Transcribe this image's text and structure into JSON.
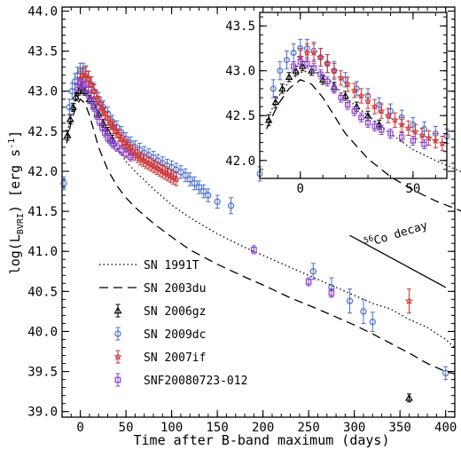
{
  "chart_data": {
    "type": "scatter",
    "xlabel": "Time after B-band maximum (days)",
    "ylabel": "log(L_BVRI) [erg s^-1]",
    "xlim": [
      -20,
      410
    ],
    "ylim": [
      38.93,
      44.05
    ],
    "xticks": [
      "0",
      "50",
      "100",
      "150",
      "200",
      "250",
      "300",
      "350",
      "400"
    ],
    "yticks": [
      "39.0",
      "39.5",
      "40.0",
      "40.5",
      "41.0",
      "41.5",
      "42.0",
      "42.5",
      "43.0",
      "43.5",
      "44.0"
    ],
    "legend_position": "bottom-left",
    "legend": [
      {
        "label": "SN 1991T",
        "style": "dotted"
      },
      {
        "label": "SN 2003du",
        "style": "dashed"
      },
      {
        "label": "SN 2006gz",
        "style": "triangle",
        "color": "#000000"
      },
      {
        "label": "SN 2009dc",
        "style": "circle",
        "color": "#4a6fd0"
      },
      {
        "label": "SN 2007if",
        "style": "star",
        "color": "#d23030"
      },
      {
        "label": "SNF20080723-012",
        "style": "square",
        "color": "#8a3fd0"
      }
    ],
    "annotation": {
      "sup": "56",
      "text": "Co decay",
      "line_x": [
        295,
        400
      ],
      "line_y": [
        41.2,
        40.55
      ]
    },
    "series": [
      {
        "name": "SN 1991T",
        "style": "dotted",
        "color": "#000000",
        "x": [
          -15,
          -10,
          -5,
          0,
          5,
          10,
          15,
          20,
          30,
          40,
          50,
          60,
          80,
          100,
          120,
          150,
          180,
          200,
          230,
          260,
          280,
          300,
          320,
          340,
          360,
          380,
          400,
          410
        ],
        "y": [
          42.45,
          42.7,
          42.88,
          42.98,
          43.0,
          42.95,
          42.85,
          42.7,
          42.5,
          42.3,
          42.12,
          42.0,
          41.78,
          41.58,
          41.42,
          41.22,
          41.05,
          40.95,
          40.8,
          40.65,
          40.55,
          40.45,
          40.35,
          40.28,
          40.15,
          40.05,
          39.9,
          39.8
        ]
      },
      {
        "name": "SN 2003du",
        "style": "dashed",
        "color": "#000000",
        "x": [
          -15,
          -10,
          -5,
          0,
          5,
          10,
          15,
          20,
          30,
          40,
          50,
          60,
          80,
          100,
          120,
          150,
          180,
          200,
          230,
          260,
          280,
          300,
          320,
          340,
          360,
          380,
          400,
          410
        ],
        "y": [
          42.35,
          42.62,
          42.8,
          42.9,
          42.85,
          42.7,
          42.5,
          42.3,
          42.02,
          41.82,
          41.67,
          41.55,
          41.35,
          41.18,
          41.02,
          40.84,
          40.68,
          40.58,
          40.42,
          40.28,
          40.18,
          40.08,
          39.97,
          39.85,
          39.73,
          39.6,
          39.5,
          39.47
        ]
      },
      {
        "name": "SN 2006gz",
        "style": "triangle",
        "color": "#000000",
        "x": [
          -14,
          -11,
          -8,
          -5,
          -2,
          1,
          5,
          10,
          15,
          20,
          25,
          30,
          35,
          360
        ],
        "y": [
          42.45,
          42.65,
          42.8,
          42.93,
          43.0,
          43.05,
          43.0,
          42.9,
          42.82,
          42.72,
          42.6,
          42.5,
          42.4,
          39.17
        ],
        "err": [
          0.06,
          0.06,
          0.05,
          0.05,
          0.05,
          0.05,
          0.05,
          0.05,
          0.05,
          0.05,
          0.05,
          0.05,
          0.05,
          0.05
        ]
      },
      {
        "name": "SN 2009dc",
        "style": "circle",
        "color": "#4a6fd0",
        "x": [
          -18,
          -12,
          -9,
          -6,
          -3,
          0,
          3,
          6,
          9,
          12,
          15,
          20,
          25,
          30,
          35,
          40,
          45,
          50,
          55,
          60,
          65,
          70,
          75,
          80,
          85,
          90,
          95,
          100,
          105,
          110,
          115,
          120,
          125,
          130,
          135,
          140,
          150,
          165,
          255,
          275,
          295,
          310,
          320,
          400
        ],
        "y": [
          41.85,
          42.8,
          43.0,
          43.12,
          43.2,
          43.25,
          43.25,
          43.22,
          43.15,
          43.08,
          43.0,
          42.9,
          42.8,
          42.72,
          42.62,
          42.55,
          42.48,
          42.4,
          42.35,
          42.3,
          42.27,
          42.23,
          42.2,
          42.17,
          42.13,
          42.1,
          42.07,
          42.05,
          42.02,
          41.99,
          41.95,
          41.9,
          41.85,
          41.8,
          41.75,
          41.7,
          41.62,
          41.57,
          40.75,
          40.55,
          40.38,
          40.25,
          40.12,
          39.48
        ],
        "err": [
          0.08,
          0.1,
          0.1,
          0.1,
          0.1,
          0.1,
          0.1,
          0.1,
          0.1,
          0.1,
          0.1,
          0.08,
          0.08,
          0.08,
          0.08,
          0.08,
          0.08,
          0.08,
          0.08,
          0.08,
          0.08,
          0.08,
          0.08,
          0.08,
          0.08,
          0.08,
          0.08,
          0.08,
          0.08,
          0.08,
          0.08,
          0.08,
          0.08,
          0.08,
          0.08,
          0.08,
          0.08,
          0.1,
          0.1,
          0.12,
          0.15,
          0.15,
          0.12,
          0.08
        ]
      },
      {
        "name": "SN 2007if",
        "style": "star",
        "color": "#d23030",
        "x": [
          0,
          3,
          6,
          9,
          12,
          15,
          18,
          21,
          24,
          27,
          30,
          33,
          36,
          39,
          42,
          45,
          48,
          51,
          54,
          57,
          60,
          63,
          66,
          69,
          72,
          75,
          78,
          81,
          84,
          87,
          90,
          93,
          96,
          99,
          102,
          105,
          360
        ],
        "y": [
          43.15,
          43.2,
          43.2,
          43.15,
          43.08,
          43.0,
          42.92,
          42.85,
          42.78,
          42.72,
          42.66,
          42.6,
          42.55,
          42.5,
          42.45,
          42.4,
          42.36,
          42.32,
          42.28,
          42.25,
          42.22,
          42.19,
          42.16,
          42.14,
          42.12,
          42.1,
          42.08,
          42.06,
          42.04,
          42.02,
          42.0,
          41.98,
          41.96,
          41.94,
          41.92,
          41.9,
          40.38
        ],
        "err": [
          0.1,
          0.1,
          0.1,
          0.1,
          0.1,
          0.08,
          0.08,
          0.08,
          0.08,
          0.08,
          0.08,
          0.08,
          0.08,
          0.08,
          0.08,
          0.08,
          0.08,
          0.08,
          0.08,
          0.08,
          0.08,
          0.08,
          0.08,
          0.08,
          0.08,
          0.08,
          0.08,
          0.08,
          0.08,
          0.08,
          0.08,
          0.08,
          0.08,
          0.08,
          0.08,
          0.08,
          0.15
        ]
      },
      {
        "name": "SNF20080723-012",
        "style": "square",
        "color": "#8a3fd0",
        "x": [
          -3,
          0,
          3,
          6,
          9,
          12,
          15,
          18,
          21,
          24,
          27,
          30,
          33,
          36,
          40,
          45,
          50,
          55,
          190,
          250,
          275
        ],
        "y": [
          43.05,
          43.1,
          43.08,
          43.03,
          42.96,
          42.88,
          42.8,
          42.7,
          42.62,
          42.55,
          42.48,
          42.42,
          42.38,
          42.34,
          42.3,
          42.26,
          42.22,
          42.18,
          41.02,
          40.62,
          40.48
        ],
        "err": [
          0.05,
          0.05,
          0.05,
          0.05,
          0.05,
          0.05,
          0.05,
          0.05,
          0.05,
          0.05,
          0.05,
          0.05,
          0.05,
          0.05,
          0.05,
          0.05,
          0.05,
          0.05,
          0.05,
          0.05,
          0.05
        ]
      }
    ],
    "inset": {
      "xlim": [
        -18,
        65
      ],
      "ylim": [
        41.8,
        43.65
      ],
      "xticks": [
        "0",
        "50"
      ],
      "yticks": [
        "42.0",
        "42.5",
        "43.0",
        "43.5"
      ]
    }
  }
}
